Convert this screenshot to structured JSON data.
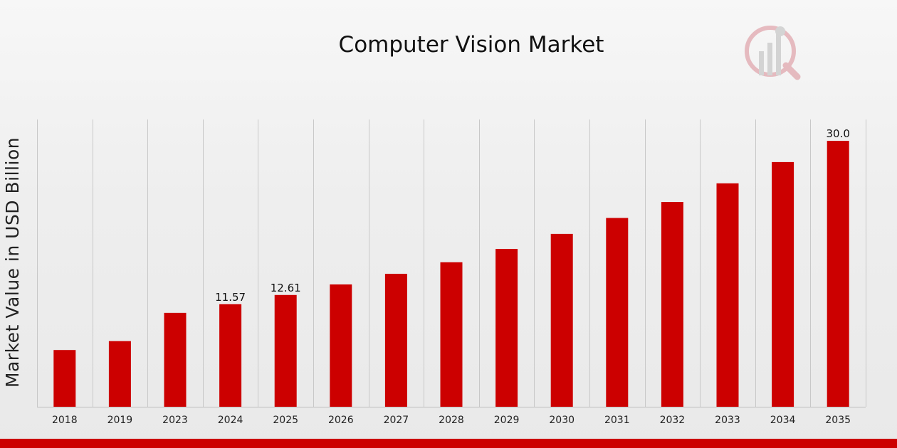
{
  "colors": {
    "bar": "#cc0000",
    "grid": "#c8c8c8",
    "bottom_bar": "#cc0000",
    "logo": "#d9a0a6"
  },
  "logo_icon": "magnifier-bar-chart-icon",
  "chart_data": {
    "type": "bar",
    "title": "Computer Vision Market",
    "xlabel": "",
    "ylabel": "Market Value in USD Billion",
    "categories": [
      "2018",
      "2019",
      "2023",
      "2024",
      "2025",
      "2026",
      "2027",
      "2028",
      "2029",
      "2030",
      "2031",
      "2032",
      "2033",
      "2034",
      "2035"
    ],
    "values": [
      6.4,
      7.4,
      10.6,
      11.57,
      12.61,
      13.8,
      15.0,
      16.3,
      17.8,
      19.5,
      21.3,
      23.1,
      25.2,
      27.6,
      30.0
    ],
    "data_labels": {
      "2024": "11.57",
      "2025": "12.61",
      "2035": "30.0"
    },
    "ylim": [
      0,
      30.5
    ],
    "grid": "vertical",
    "legend": "none"
  }
}
